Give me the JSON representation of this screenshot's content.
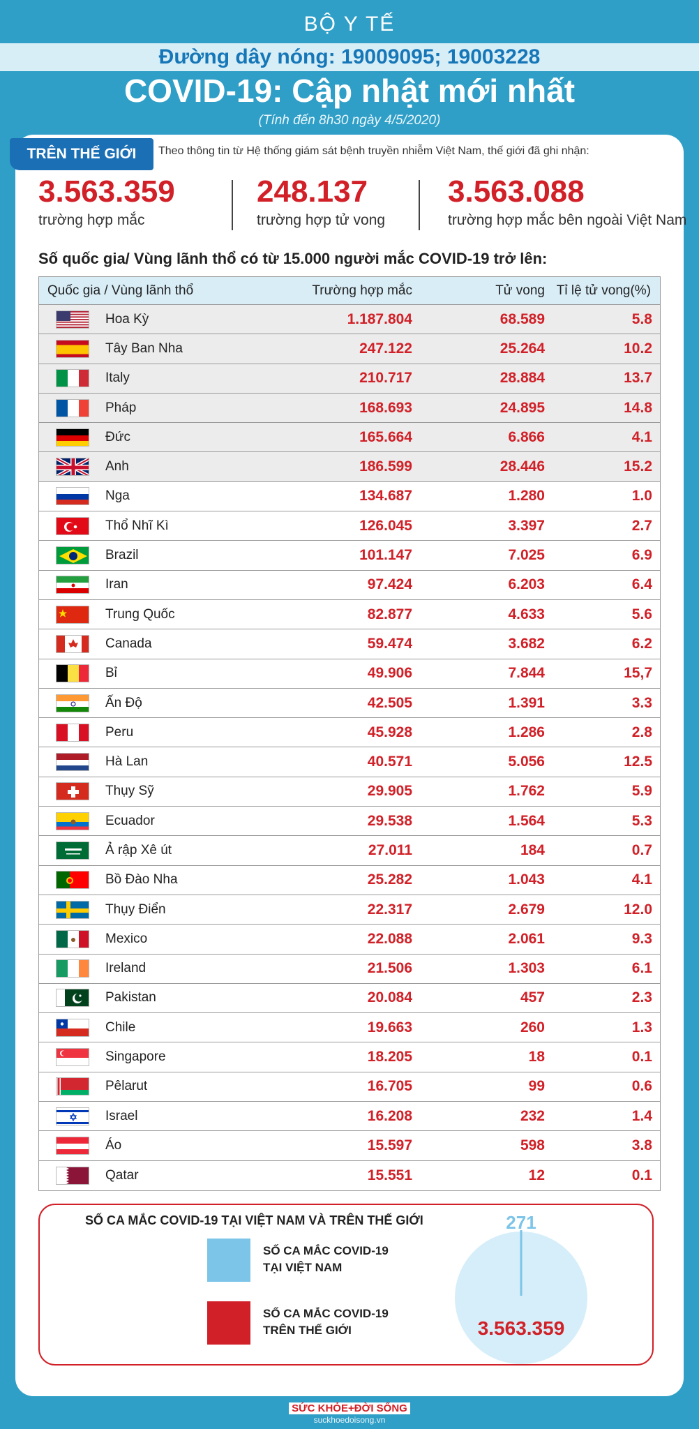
{
  "header": {
    "ministry": "BỘ Y TẾ",
    "hotline": "Đường dây nóng: 19009095; 19003228",
    "title": "COVID-19: Cập nhật mới nhất",
    "subtitle": "(Tính đến 8h30 ngày 4/5/2020)"
  },
  "world": {
    "tag": "TRÊN THẾ GIỚI",
    "intro": "Theo thông tin từ Hệ thống giám sát bệnh truyền nhiễm Việt Nam, thế giới đã ghi nhận:",
    "stats": [
      {
        "value": "3.563.359",
        "label": "trường hợp mắc"
      },
      {
        "value": "248.137",
        "label": "trường hợp tử vong"
      },
      {
        "value": "3.563.088",
        "label": "trường hợp mắc bên ngoài Việt Nam"
      }
    ]
  },
  "table": {
    "heading": "Số quốc gia/ Vùng lãnh thổ có từ 15.000 người  mắc COVID-19 trở lên:",
    "columns": [
      "Quốc gia / Vùng lãnh thổ",
      "Trường hợp mắc",
      "Tử vong",
      "Tỉ lệ tử vong(%)"
    ],
    "rows": [
      {
        "flag": "us-flag",
        "name": "Hoa Kỳ",
        "cases": "1.187.804",
        "deaths": "68.589",
        "rate": "5.8"
      },
      {
        "flag": "spain-flag",
        "name": "Tây Ban Nha",
        "cases": "247.122",
        "deaths": "25.264",
        "rate": "10.2"
      },
      {
        "flag": "italy-flag",
        "name": "Italy",
        "cases": "210.717",
        "deaths": "28.884",
        "rate": "13.7"
      },
      {
        "flag": "france-flag",
        "name": "Pháp",
        "cases": "168.693",
        "deaths": "24.895",
        "rate": "14.8"
      },
      {
        "flag": "germany-flag",
        "name": "Đức",
        "cases": "165.664",
        "deaths": "6.866",
        "rate": "4.1"
      },
      {
        "flag": "uk-flag",
        "name": "Anh",
        "cases": "186.599",
        "deaths": "28.446",
        "rate": "15.2"
      },
      {
        "flag": "russia-flag",
        "name": "Nga",
        "cases": "134.687",
        "deaths": "1.280",
        "rate": "1.0"
      },
      {
        "flag": "turkey-flag",
        "name": "Thổ Nhĩ Kì",
        "cases": "126.045",
        "deaths": "3.397",
        "rate": "2.7"
      },
      {
        "flag": "brazil-flag",
        "name": "Brazil",
        "cases": "101.147",
        "deaths": "7.025",
        "rate": "6.9"
      },
      {
        "flag": "iran-flag",
        "name": "Iran",
        "cases": "97.424",
        "deaths": "6.203",
        "rate": "6.4"
      },
      {
        "flag": "china-flag",
        "name": "Trung Quốc",
        "cases": "82.877",
        "deaths": "4.633",
        "rate": "5.6"
      },
      {
        "flag": "canada-flag",
        "name": "Canada",
        "cases": "59.474",
        "deaths": "3.682",
        "rate": "6.2"
      },
      {
        "flag": "belgium-flag",
        "name": "Bỉ",
        "cases": "49.906",
        "deaths": "7.844",
        "rate": "15,7"
      },
      {
        "flag": "india-flag",
        "name": "Ấn Độ",
        "cases": "42.505",
        "deaths": "1.391",
        "rate": "3.3"
      },
      {
        "flag": "peru-flag",
        "name": "Peru",
        "cases": "45.928",
        "deaths": "1.286",
        "rate": "2.8"
      },
      {
        "flag": "netherlands-flag",
        "name": "Hà Lan",
        "cases": "40.571",
        "deaths": "5.056",
        "rate": "12.5"
      },
      {
        "flag": "switzerland-flag",
        "name": "Thụy Sỹ",
        "cases": "29.905",
        "deaths": "1.762",
        "rate": "5.9"
      },
      {
        "flag": "ecuador-flag",
        "name": "Ecuador",
        "cases": "29.538",
        "deaths": "1.564",
        "rate": "5.3"
      },
      {
        "flag": "saudi-flag",
        "name": "Ả rập Xê út",
        "cases": "27.011",
        "deaths": "184",
        "rate": "0.7"
      },
      {
        "flag": "portugal-flag",
        "name": "Bồ Đào Nha",
        "cases": "25.282",
        "deaths": "1.043",
        "rate": "4.1"
      },
      {
        "flag": "sweden-flag",
        "name": "Thụy Điển",
        "cases": "22.317",
        "deaths": "2.679",
        "rate": "12.0"
      },
      {
        "flag": "mexico-flag",
        "name": "Mexico",
        "cases": "22.088",
        "deaths": "2.061",
        "rate": "9.3"
      },
      {
        "flag": "ireland-flag",
        "name": "Ireland",
        "cases": "21.506",
        "deaths": "1.303",
        "rate": "6.1"
      },
      {
        "flag": "pakistan-flag",
        "name": "Pakistan",
        "cases": "20.084",
        "deaths": "457",
        "rate": "2.3"
      },
      {
        "flag": "chile-flag",
        "name": "Chile",
        "cases": "19.663",
        "deaths": "260",
        "rate": "1.3"
      },
      {
        "flag": "singapore-flag",
        "name": "Singapore",
        "cases": "18.205",
        "deaths": "18",
        "rate": "0.1"
      },
      {
        "flag": "belarus-flag",
        "name": "Pêlarut",
        "cases": "16.705",
        "deaths": "99",
        "rate": "0.6"
      },
      {
        "flag": "israel-flag",
        "name": "Israel",
        "cases": "16.208",
        "deaths": "232",
        "rate": "1.4"
      },
      {
        "flag": "austria-flag",
        "name": "Áo",
        "cases": "15.597",
        "deaths": "598",
        "rate": "3.8"
      },
      {
        "flag": "qatar-flag",
        "name": "Qatar",
        "cases": "15.551",
        "deaths": "12",
        "rate": "0.1"
      }
    ]
  },
  "comparison": {
    "title": "SỐ CA MẮC COVID-19 TẠI VIỆT NAM VÀ TRÊN THẾ GIỚI",
    "legend": [
      {
        "line1": "SỐ CA MẮC COVID-19",
        "line2": "TẠI VIỆT NAM",
        "color": "#7cc4e8"
      },
      {
        "line1": "SỐ CA MẮC COVID-19",
        "line2": "TRÊN THẾ GIỚI",
        "color": "#d12027"
      }
    ],
    "vietnam_value": "271",
    "world_value": "3.563.359",
    "vietnam_cases": 271,
    "world_cases": 3563359,
    "circle_color": "#d6eef9"
  },
  "footer": {
    "brand": "SỨC KHỎE+ĐỜI SỐNG",
    "site": "suckhoedoisong.vn"
  },
  "colors": {
    "background": "#2f9fc7",
    "accent_red": "#d12027",
    "accent_blue": "#1b6fb5"
  }
}
